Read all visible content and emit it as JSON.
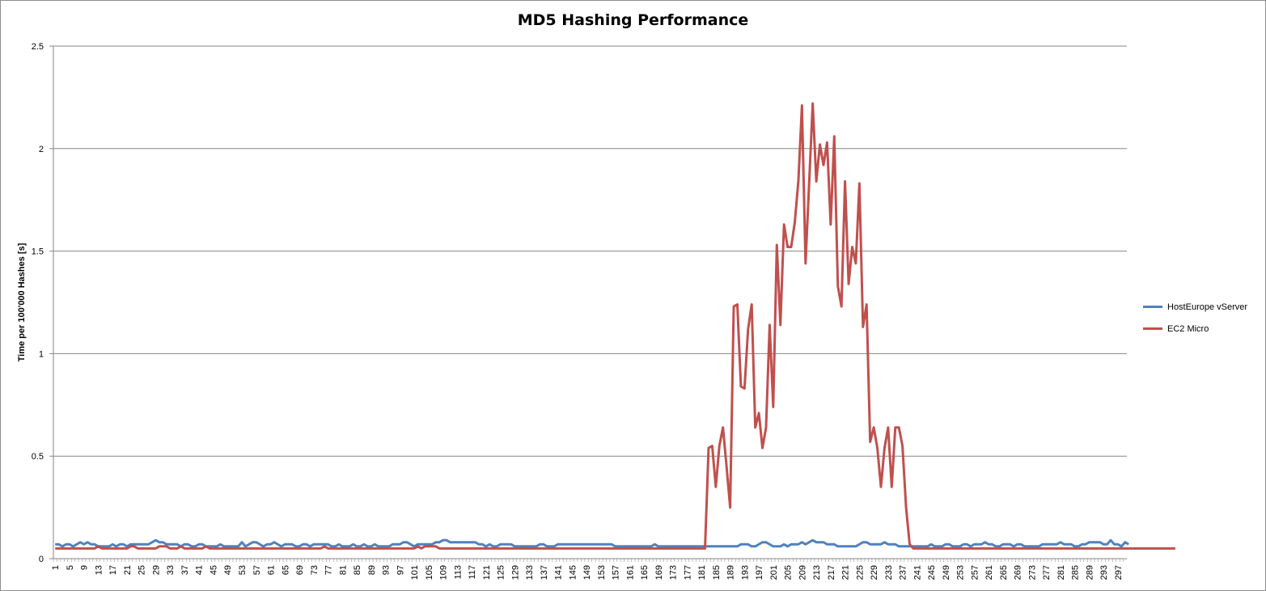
{
  "chart_data": {
    "type": "line",
    "title": "MD5 Hashing Performance",
    "xlabel": "",
    "ylabel": "Time per 100'000 Hashes [s]",
    "ylim": [
      0,
      2.5
    ],
    "yticks": [
      "0",
      "0.5",
      "1",
      "1.5",
      "2",
      "2.5"
    ],
    "x_start": 1,
    "x_end": 299,
    "x_tick_step": 4,
    "grid": "horizontal",
    "legend_position": "right",
    "series": [
      {
        "name": "HostEurope vServer",
        "color": "#4f81bd",
        "values": [
          0.07,
          0.07,
          0.06,
          0.07,
          0.07,
          0.06,
          0.07,
          0.08,
          0.07,
          0.08,
          0.07,
          0.07,
          0.06,
          0.06,
          0.06,
          0.06,
          0.07,
          0.06,
          0.07,
          0.07,
          0.06,
          0.07,
          0.07,
          0.07,
          0.07,
          0.07,
          0.07,
          0.08,
          0.09,
          0.08,
          0.08,
          0.07,
          0.07,
          0.07,
          0.07,
          0.06,
          0.07,
          0.07,
          0.06,
          0.06,
          0.07,
          0.07,
          0.06,
          0.06,
          0.06,
          0.06,
          0.07,
          0.06,
          0.06,
          0.06,
          0.06,
          0.06,
          0.08,
          0.06,
          0.07,
          0.08,
          0.08,
          0.07,
          0.06,
          0.07,
          0.07,
          0.08,
          0.07,
          0.06,
          0.07,
          0.07,
          0.07,
          0.06,
          0.06,
          0.07,
          0.07,
          0.06,
          0.07,
          0.07,
          0.07,
          0.07,
          0.07,
          0.06,
          0.06,
          0.07,
          0.06,
          0.06,
          0.06,
          0.07,
          0.06,
          0.06,
          0.07,
          0.06,
          0.06,
          0.07,
          0.06,
          0.06,
          0.06,
          0.06,
          0.07,
          0.07,
          0.07,
          0.08,
          0.08,
          0.07,
          0.06,
          0.07,
          0.07,
          0.07,
          0.07,
          0.07,
          0.08,
          0.08,
          0.09,
          0.09,
          0.08,
          0.08,
          0.08,
          0.08,
          0.08,
          0.08,
          0.08,
          0.08,
          0.07,
          0.07,
          0.06,
          0.07,
          0.06,
          0.06,
          0.07,
          0.07,
          0.07,
          0.07,
          0.06,
          0.06,
          0.06,
          0.06,
          0.06,
          0.06,
          0.06,
          0.07,
          0.07,
          0.06,
          0.06,
          0.06,
          0.07,
          0.07,
          0.07,
          0.07,
          0.07,
          0.07,
          0.07,
          0.07,
          0.07,
          0.07,
          0.07,
          0.07,
          0.07,
          0.07,
          0.07,
          0.07,
          0.06,
          0.06,
          0.06,
          0.06,
          0.06,
          0.06,
          0.06,
          0.06,
          0.06,
          0.06,
          0.06,
          0.07,
          0.06,
          0.06,
          0.06,
          0.06,
          0.06,
          0.06,
          0.06,
          0.06,
          0.06,
          0.06,
          0.06,
          0.06,
          0.06,
          0.06,
          0.06,
          0.06,
          0.06,
          0.06,
          0.06,
          0.06,
          0.06,
          0.06,
          0.06,
          0.07,
          0.07,
          0.07,
          0.06,
          0.06,
          0.07,
          0.08,
          0.08,
          0.07,
          0.06,
          0.06,
          0.06,
          0.07,
          0.06,
          0.07,
          0.07,
          0.07,
          0.08,
          0.07,
          0.08,
          0.09,
          0.08,
          0.08,
          0.08,
          0.07,
          0.07,
          0.07,
          0.06,
          0.06,
          0.06,
          0.06,
          0.06,
          0.06,
          0.07,
          0.08,
          0.08,
          0.07,
          0.07,
          0.07,
          0.07,
          0.08,
          0.07,
          0.07,
          0.07,
          0.06,
          0.06,
          0.06,
          0.06,
          0.06,
          0.06,
          0.06,
          0.06,
          0.06,
          0.07,
          0.06,
          0.06,
          0.06,
          0.07,
          0.07,
          0.06,
          0.06,
          0.06,
          0.07,
          0.07,
          0.06,
          0.07,
          0.07,
          0.07,
          0.08,
          0.07,
          0.07,
          0.06,
          0.06,
          0.07,
          0.07,
          0.07,
          0.06,
          0.07,
          0.07,
          0.06,
          0.06,
          0.06,
          0.06,
          0.06,
          0.07,
          0.07,
          0.07,
          0.07,
          0.07,
          0.08,
          0.07,
          0.07,
          0.07,
          0.06,
          0.06,
          0.07,
          0.07,
          0.08,
          0.08,
          0.08,
          0.08,
          0.07,
          0.07,
          0.09,
          0.07,
          0.07,
          0.06,
          0.08,
          0.07
        ]
      },
      {
        "name": "EC2 Micro",
        "color": "#c0504d",
        "values": [
          0.05,
          0.05,
          0.05,
          0.05,
          0.05,
          0.05,
          0.05,
          0.05,
          0.05,
          0.05,
          0.05,
          0.05,
          0.06,
          0.05,
          0.05,
          0.05,
          0.05,
          0.05,
          0.05,
          0.05,
          0.05,
          0.06,
          0.06,
          0.05,
          0.05,
          0.05,
          0.05,
          0.05,
          0.05,
          0.06,
          0.06,
          0.06,
          0.05,
          0.05,
          0.05,
          0.06,
          0.05,
          0.05,
          0.05,
          0.05,
          0.05,
          0.05,
          0.06,
          0.05,
          0.05,
          0.05,
          0.05,
          0.05,
          0.05,
          0.05,
          0.05,
          0.05,
          0.05,
          0.05,
          0.05,
          0.05,
          0.05,
          0.05,
          0.05,
          0.05,
          0.05,
          0.05,
          0.05,
          0.05,
          0.05,
          0.05,
          0.05,
          0.05,
          0.05,
          0.05,
          0.05,
          0.05,
          0.05,
          0.05,
          0.05,
          0.06,
          0.05,
          0.05,
          0.05,
          0.05,
          0.05,
          0.05,
          0.05,
          0.05,
          0.05,
          0.05,
          0.05,
          0.05,
          0.05,
          0.05,
          0.05,
          0.05,
          0.05,
          0.05,
          0.05,
          0.05,
          0.05,
          0.05,
          0.05,
          0.05,
          0.05,
          0.06,
          0.05,
          0.06,
          0.06,
          0.06,
          0.06,
          0.05,
          0.05,
          0.05,
          0.05,
          0.05,
          0.05,
          0.05,
          0.05,
          0.05,
          0.05,
          0.05,
          0.05,
          0.05,
          0.05,
          0.05,
          0.05,
          0.05,
          0.05,
          0.05,
          0.05,
          0.05,
          0.05,
          0.05,
          0.05,
          0.05,
          0.05,
          0.05,
          0.05,
          0.05,
          0.05,
          0.05,
          0.05,
          0.05,
          0.05,
          0.05,
          0.05,
          0.05,
          0.05,
          0.05,
          0.05,
          0.05,
          0.05,
          0.05,
          0.05,
          0.05,
          0.05,
          0.05,
          0.05,
          0.05,
          0.05,
          0.05,
          0.05,
          0.05,
          0.05,
          0.05,
          0.05,
          0.05,
          0.05,
          0.05,
          0.05,
          0.05,
          0.05,
          0.05,
          0.05,
          0.05,
          0.05,
          0.05,
          0.05,
          0.05,
          0.05,
          0.05,
          0.05,
          0.05,
          0.05,
          0.05,
          0.54,
          0.55,
          0.35,
          0.55,
          0.64,
          0.45,
          0.25,
          1.23,
          1.24,
          0.84,
          0.83,
          1.12,
          1.24,
          0.64,
          0.71,
          0.54,
          0.64,
          1.14,
          0.74,
          1.53,
          1.14,
          1.63,
          1.52,
          1.52,
          1.64,
          1.84,
          2.21,
          1.44,
          1.83,
          2.22,
          1.84,
          2.02,
          1.92,
          2.03,
          1.63,
          2.06,
          1.33,
          1.23,
          1.84,
          1.34,
          1.52,
          1.44,
          1.83,
          1.13,
          1.24,
          0.57,
          0.64,
          0.54,
          0.35,
          0.54,
          0.64,
          0.35,
          0.64,
          0.64,
          0.55,
          0.25,
          0.07,
          0.05,
          0.05,
          0.05,
          0.05,
          0.05,
          0.05,
          0.05,
          0.05,
          0.05,
          0.05,
          0.05,
          0.05,
          0.05,
          0.05,
          0.05,
          0.05,
          0.05,
          0.05,
          0.05,
          0.05,
          0.05,
          0.05,
          0.05,
          0.05,
          0.05,
          0.05,
          0.05,
          0.05,
          0.05,
          0.05,
          0.05,
          0.05,
          0.05,
          0.05,
          0.05,
          0.05,
          0.05,
          0.05,
          0.05,
          0.05,
          0.05,
          0.05,
          0.05,
          0.05,
          0.05,
          0.05,
          0.05,
          0.05,
          0.05,
          0.05,
          0.05,
          0.05,
          0.05,
          0.05,
          0.05,
          0.05,
          0.05,
          0.05,
          0.05,
          0.05,
          0.05,
          0.05,
          0.05,
          0.05,
          0.05,
          0.05,
          0.05,
          0.05,
          0.05,
          0.05,
          0.05,
          0.05,
          0.05,
          0.05
        ]
      }
    ]
  }
}
